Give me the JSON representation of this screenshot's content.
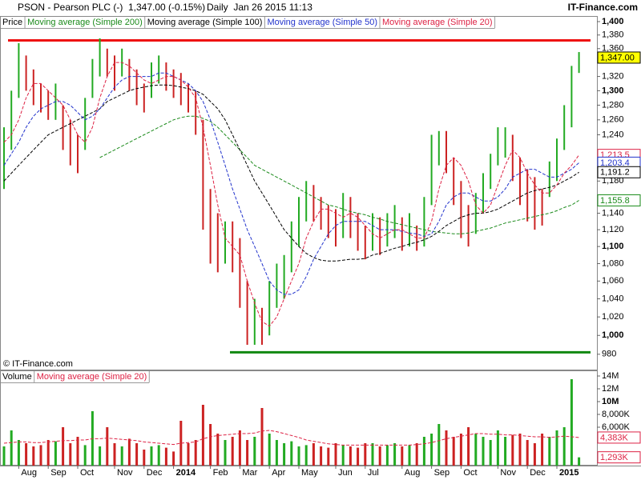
{
  "header": {
    "symbol": "PSON - Pearson PLC (-)",
    "quote": "1,347.00 (-0.15%)",
    "timestamp": "Daily  Jan 26 2015 11:13",
    "brand": "IT-Finance.com"
  },
  "chart_data": [
    {
      "type": "ohlc",
      "annotation": "© IT-Finance.com",
      "log_scale": true,
      "grid": false,
      "ylim": [
        964,
        1406
      ],
      "yticks": [
        980,
        {
          "value": 1000,
          "label": "1,000"
        },
        {
          "value": 1020,
          "label": "1,020"
        },
        {
          "value": 1040,
          "label": "1,040"
        },
        {
          "value": 1060,
          "label": "1,060"
        },
        {
          "value": 1080,
          "label": "1,080"
        },
        {
          "value": 1100,
          "label": "1,100"
        },
        {
          "value": 1120,
          "label": "1,120"
        },
        {
          "value": 1140,
          "label": "1,140"
        },
        {
          "value": 1180,
          "label": "1,180"
        },
        {
          "value": 1240,
          "label": "1,240"
        },
        {
          "value": 1260,
          "label": "1,260"
        },
        {
          "value": 1280,
          "label": "1,280"
        },
        {
          "value": 1300,
          "label": "1,300"
        },
        {
          "value": 1320,
          "label": "1,320"
        },
        {
          "value": 1360,
          "label": "1,360"
        },
        {
          "value": 1380,
          "label": "1,380"
        },
        {
          "value": 1400,
          "label": "1,400"
        }
      ],
      "hlines": [
        {
          "value": 1372,
          "color": "#ee1111"
        },
        {
          "value": 982,
          "color": "#118811"
        }
      ],
      "series": [
        {
          "name": "Price",
          "up_color": "#22aa22",
          "down_color": "#cc2222",
          "last_label": "1,347.00",
          "high": [
            1250,
            1300,
            1368,
            1350,
            1330,
            1310,
            1300,
            1310,
            1280,
            1260,
            1240,
            1290,
            1345,
            1375,
            1360,
            1350,
            1360,
            1345,
            1330,
            1310,
            1340,
            1350,
            1340,
            1330,
            1325,
            1310,
            1300,
            1260,
            1170,
            1140,
            1130,
            1130,
            1110,
            1060,
            1040,
            1030,
            1060,
            1080,
            1090,
            1130,
            1160,
            1180,
            1175,
            1160,
            1150,
            1145,
            1165,
            1160,
            1140,
            1125,
            1140,
            1135,
            1140,
            1150,
            1135,
            1140,
            1125,
            1160,
            1240,
            1245,
            1245,
            1210,
            1180,
            1150,
            1165,
            1190,
            1215,
            1250,
            1250,
            1240,
            1210,
            1195,
            1185,
            1170,
            1205,
            1235,
            1280,
            1335,
            1355
          ],
          "low": [
            1170,
            1220,
            1290,
            1300,
            1280,
            1270,
            1260,
            1260,
            1220,
            1200,
            1190,
            1220,
            1290,
            1320,
            1320,
            1300,
            1320,
            1300,
            1280,
            1270,
            1290,
            1310,
            1300,
            1290,
            1280,
            1270,
            1240,
            1120,
            1080,
            1070,
            1080,
            1070,
            1030,
            990,
            990,
            990,
            1000,
            1030,
            1040,
            1070,
            1100,
            1130,
            1130,
            1120,
            1110,
            1100,
            1110,
            1110,
            1095,
            1085,
            1095,
            1090,
            1100,
            1110,
            1095,
            1100,
            1095,
            1100,
            1150,
            1200,
            1190,
            1150,
            1110,
            1100,
            1115,
            1140,
            1170,
            1200,
            1210,
            1180,
            1150,
            1130,
            1120,
            1125,
            1160,
            1180,
            1220,
            1250,
            1325
          ],
          "values": [
            1200,
            1260,
            1340,
            1320,
            1300,
            1290,
            1280,
            1285,
            1250,
            1230,
            1200,
            1260,
            1320,
            1350,
            1340,
            1330,
            1340,
            1320,
            1300,
            1290,
            1320,
            1335,
            1320,
            1310,
            1300,
            1290,
            1260,
            1150,
            1120,
            1090,
            1110,
            1100,
            1060,
            1000,
            1010,
            1000,
            1040,
            1060,
            1070,
            1100,
            1130,
            1160,
            1150,
            1140,
            1130,
            1120,
            1150,
            1140,
            1110,
            1100,
            1120,
            1110,
            1120,
            1130,
            1110,
            1120,
            1100,
            1130,
            1200,
            1230,
            1220,
            1180,
            1150,
            1120,
            1140,
            1170,
            1190,
            1230,
            1240,
            1210,
            1180,
            1170,
            1160,
            1140,
            1190,
            1220,
            1260,
            1320,
            1347
          ]
        },
        {
          "name": "Moving average (Simple 200)",
          "color": "#1a8a1a",
          "line_style": "dashed",
          "last_label": "1,155.8",
          "values": [
            null,
            null,
            null,
            null,
            null,
            null,
            null,
            null,
            null,
            null,
            null,
            null,
            null,
            1210,
            1215,
            1220,
            1225,
            1230,
            1235,
            1240,
            1245,
            1250,
            1255,
            1260,
            1263,
            1265,
            1265,
            1262,
            1258,
            1250,
            1240,
            1230,
            1220,
            1210,
            1200,
            1195,
            1190,
            1185,
            1180,
            1175,
            1170,
            1165,
            1160,
            1155,
            1150,
            1148,
            1145,
            1142,
            1140,
            1138,
            1135,
            1133,
            1130,
            1128,
            1126,
            1124,
            1122,
            1120,
            1118,
            1117,
            1116,
            1115,
            1115,
            1116,
            1118,
            1120,
            1122,
            1125,
            1128,
            1130,
            1132,
            1134,
            1136,
            1138,
            1140,
            1143,
            1147,
            1150,
            1155.8
          ]
        },
        {
          "name": "Moving average (Simple 100)",
          "color": "#000000",
          "line_style": "dashed",
          "last_label": "1,191.2",
          "values": [
            1180,
            1190,
            1200,
            1210,
            1220,
            1230,
            1240,
            1245,
            1250,
            1255,
            1260,
            1265,
            1270,
            1275,
            1285,
            1290,
            1295,
            1300,
            1303,
            1305,
            1307,
            1308,
            1308,
            1307,
            1305,
            1303,
            1300,
            1295,
            1285,
            1275,
            1260,
            1240,
            1220,
            1200,
            1180,
            1165,
            1150,
            1135,
            1120,
            1110,
            1100,
            1092,
            1087,
            1084,
            1083,
            1083,
            1084,
            1085,
            1085,
            1086,
            1090,
            1092,
            1095,
            1098,
            1100,
            1103,
            1105,
            1108,
            1112,
            1118,
            1125,
            1130,
            1135,
            1138,
            1140,
            1140,
            1142,
            1145,
            1150,
            1155,
            1160,
            1165,
            1168,
            1170,
            1172,
            1175,
            1180,
            1185,
            1191.2
          ]
        },
        {
          "name": "Moving average (Simple 50)",
          "color": "#2233cc",
          "line_style": "dashed",
          "last_label": "1,203.4",
          "values": [
            1200,
            1215,
            1230,
            1250,
            1265,
            1275,
            1280,
            1285,
            1285,
            1280,
            1270,
            1260,
            1265,
            1275,
            1290,
            1305,
            1315,
            1320,
            1320,
            1320,
            1320,
            1325,
            1325,
            1320,
            1315,
            1310,
            1300,
            1285,
            1260,
            1230,
            1200,
            1170,
            1145,
            1120,
            1100,
            1080,
            1060,
            1050,
            1045,
            1045,
            1050,
            1065,
            1085,
            1100,
            1115,
            1125,
            1130,
            1130,
            1130,
            1130,
            1125,
            1120,
            1120,
            1120,
            1118,
            1116,
            1115,
            1112,
            1115,
            1130,
            1150,
            1160,
            1165,
            1165,
            1160,
            1155,
            1155,
            1160,
            1170,
            1185,
            1190,
            1195,
            1195,
            1190,
            1185,
            1185,
            1190,
            1195,
            1203.4
          ]
        },
        {
          "name": "Moving average (Simple 20)",
          "color": "#dd2244",
          "line_style": "dashed",
          "last_label": "1,213.5",
          "values": [
            1230,
            1240,
            1260,
            1290,
            1310,
            1310,
            1300,
            1290,
            1280,
            1260,
            1240,
            1230,
            1250,
            1290,
            1320,
            1340,
            1340,
            1335,
            1325,
            1315,
            1310,
            1315,
            1320,
            1320,
            1315,
            1305,
            1290,
            1250,
            1200,
            1150,
            1110,
            1100,
            1090,
            1060,
            1035,
            1015,
            1010,
            1020,
            1040,
            1060,
            1080,
            1110,
            1130,
            1145,
            1145,
            1140,
            1135,
            1140,
            1135,
            1125,
            1115,
            1110,
            1115,
            1120,
            1120,
            1115,
            1110,
            1110,
            1130,
            1170,
            1200,
            1210,
            1200,
            1180,
            1150,
            1140,
            1150,
            1175,
            1200,
            1220,
            1210,
            1190,
            1175,
            1165,
            1165,
            1175,
            1190,
            1200,
            1213.5
          ]
        }
      ]
    },
    {
      "type": "volume",
      "ylim": [
        0,
        14.5
      ],
      "yticks": [
        {
          "value": 6,
          "label": "6,000K"
        },
        {
          "value": 8,
          "label": "8,000K"
        },
        {
          "value": 10,
          "label": "10M"
        },
        {
          "value": 12,
          "label": "12M"
        },
        {
          "value": 14,
          "label": "14M"
        }
      ],
      "categories": [
        null,
        null,
        "Aug",
        null,
        null,
        null,
        "Sep",
        null,
        null,
        null,
        "Oct",
        null,
        null,
        null,
        null,
        "Nov",
        null,
        null,
        null,
        "Dec",
        null,
        null,
        null,
        "2014",
        null,
        null,
        null,
        null,
        "Feb",
        null,
        null,
        null,
        "Mar",
        null,
        null,
        null,
        "Apr",
        null,
        null,
        null,
        "May",
        null,
        null,
        null,
        null,
        "Jun",
        null,
        null,
        null,
        "Jul",
        null,
        null,
        null,
        null,
        "Aug",
        null,
        null,
        null,
        "Sep",
        null,
        null,
        null,
        "Oct",
        null,
        null,
        null,
        null,
        "Nov",
        null,
        null,
        null,
        "Dec",
        null,
        null,
        null,
        "2015",
        null,
        null,
        null
      ],
      "series": [
        {
          "name": "Volume",
          "last_label": "1,293K",
          "values": [
            3.0,
            5.5,
            4.0,
            3.5,
            3.0,
            3.2,
            4.0,
            3.8,
            6.0,
            3.5,
            4.5,
            3.2,
            8.5,
            3.0,
            6.0,
            3.5,
            3.0,
            4.2,
            3.5,
            2.5,
            3.0,
            3.2,
            2.8,
            2.2,
            7.0,
            3.5,
            4.0,
            9.5,
            6.5,
            5.0,
            4.0,
            4.5,
            5.5,
            4.0,
            4.5,
            9.0,
            5.0,
            4.0,
            3.5,
            3.8,
            3.0,
            3.2,
            3.5,
            3.0,
            2.8,
            3.5,
            3.2,
            3.0,
            2.8,
            3.5,
            3.5,
            3.0,
            3.2,
            3.5,
            3.0,
            3.2,
            3.5,
            4.5,
            5.0,
            6.5,
            5.5,
            4.5,
            5.0,
            6.0,
            5.0,
            4.5,
            4.0,
            5.5,
            4.5,
            4.8,
            5.0,
            4.0,
            3.5,
            5.0,
            4.5,
            5.5,
            6.0,
            13.5,
            1.293
          ]
        },
        {
          "name": "Moving average (Simple 20)",
          "color": "#dd2244",
          "line_style": "dashed",
          "last_label": "4,383K",
          "values": [
            3.5,
            3.6,
            3.7,
            3.7,
            3.6,
            3.6,
            3.7,
            3.8,
            3.9,
            3.9,
            4.0,
            4.0,
            4.2,
            4.2,
            4.3,
            4.2,
            4.1,
            4.0,
            3.9,
            3.7,
            3.6,
            3.5,
            3.4,
            3.3,
            3.5,
            3.6,
            3.7,
            4.2,
            4.5,
            4.7,
            4.8,
            4.9,
            5.0,
            5.0,
            5.1,
            5.4,
            5.5,
            5.3,
            5.0,
            4.7,
            4.4,
            4.0,
            3.8,
            3.6,
            3.4,
            3.3,
            3.2,
            3.2,
            3.2,
            3.2,
            3.2,
            3.2,
            3.2,
            3.2,
            3.2,
            3.2,
            3.3,
            3.4,
            3.6,
            3.9,
            4.2,
            4.4,
            4.6,
            4.8,
            5.0,
            5.0,
            4.9,
            4.9,
            4.8,
            4.8,
            4.7,
            4.6,
            4.5,
            4.5,
            4.4,
            4.5,
            4.6,
            4.5,
            4.383
          ]
        }
      ]
    }
  ]
}
